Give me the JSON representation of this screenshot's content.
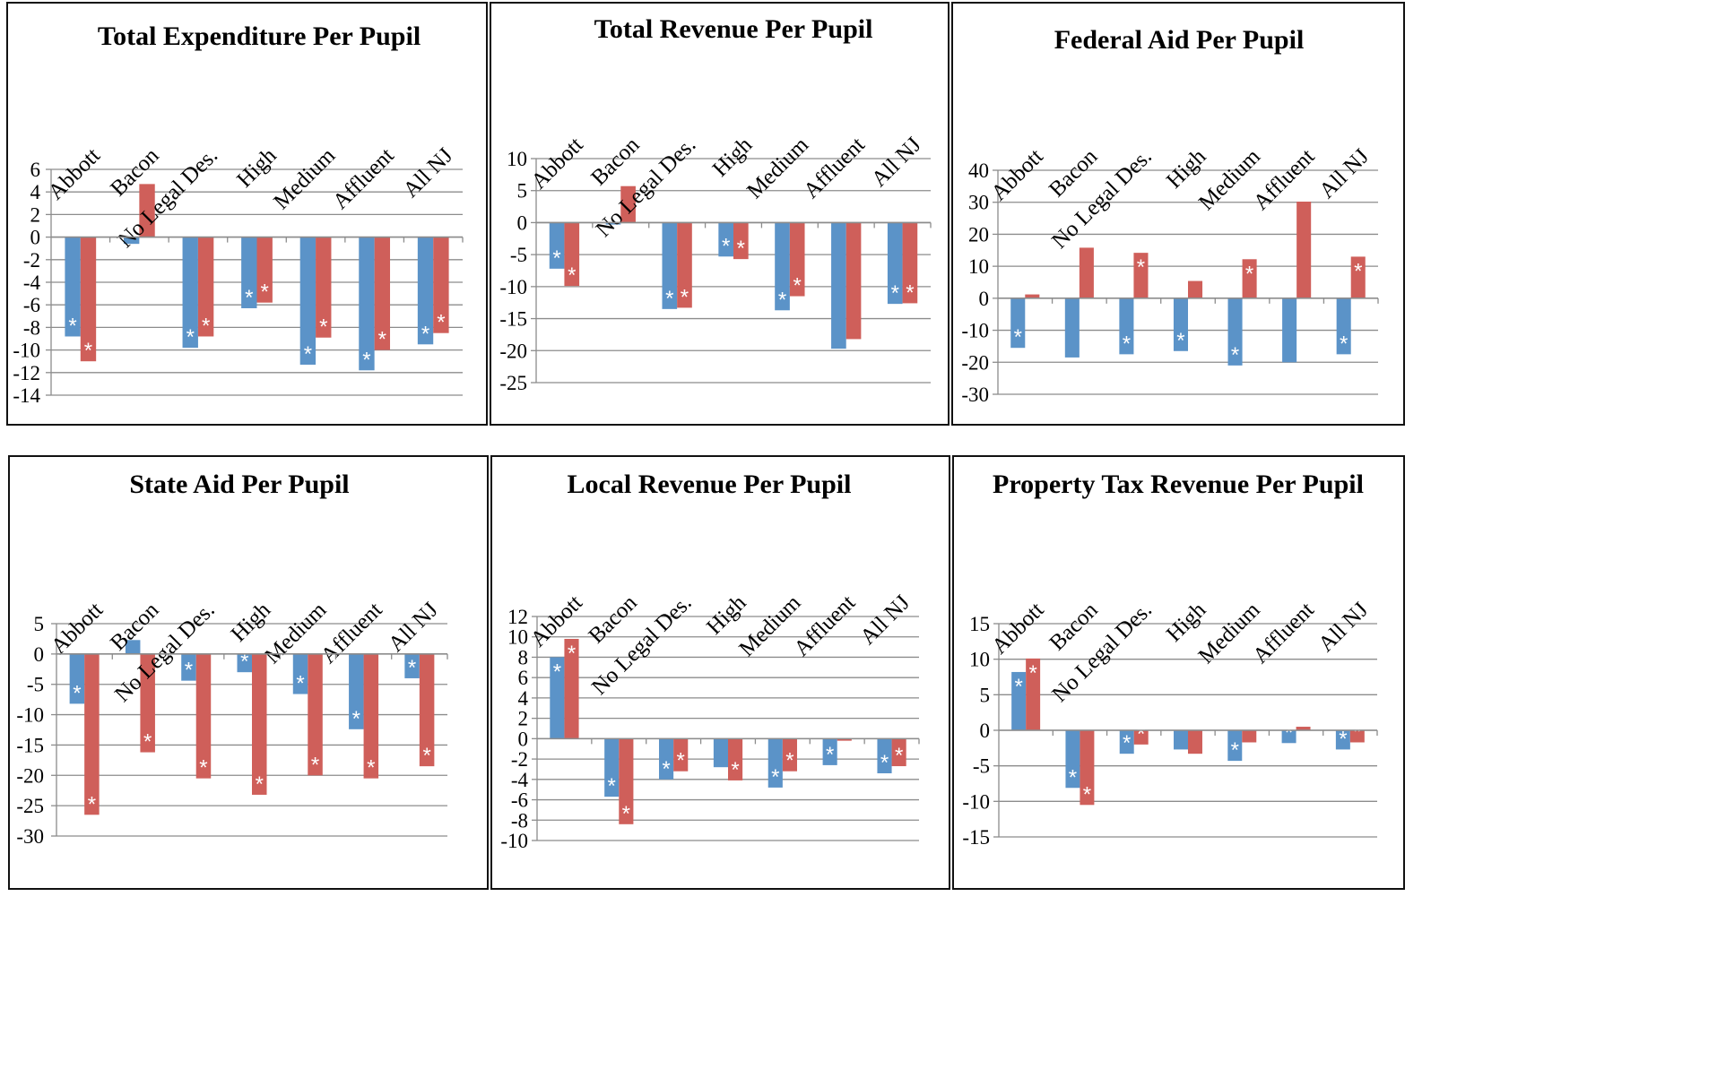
{
  "colors": {
    "series1": "#5b93c8",
    "series2": "#cf5f5a",
    "grid": "#8c8c8c",
    "axis": "#8c8c8c"
  },
  "chart_data": [
    {
      "type": "bar",
      "title": "Total Expenditure Per Pupil",
      "categories": [
        "Abbott",
        "Bacon",
        "No Legal Des.",
        "High",
        "Medium",
        "Affluent",
        "All NJ"
      ],
      "ylim": [
        -14,
        6
      ],
      "yticks": [
        6,
        4,
        2,
        0,
        -2,
        -4,
        -6,
        -8,
        -10,
        -12,
        -14
      ],
      "grid": true,
      "series": [
        {
          "values": [
            -8.8,
            -0.6,
            -9.8,
            -6.3,
            -11.3,
            -11.8,
            -9.5
          ],
          "significant": [
            true,
            false,
            true,
            true,
            true,
            true,
            true
          ]
        },
        {
          "values": [
            -11.0,
            4.7,
            -8.8,
            -5.8,
            -8.9,
            -10.0,
            -8.5
          ],
          "significant": [
            true,
            false,
            true,
            true,
            true,
            true,
            true
          ]
        }
      ]
    },
    {
      "type": "bar",
      "title": "Total Revenue Per Pupil",
      "categories": [
        "Abbott",
        "Bacon",
        "No Legal Des.",
        "High",
        "Medium",
        "Affluent",
        "All NJ"
      ],
      "ylim": [
        -25,
        10
      ],
      "yticks": [
        10,
        5,
        0,
        -5,
        -10,
        -15,
        -20,
        -25
      ],
      "grid": true,
      "series": [
        {
          "values": [
            -7.2,
            -0.3,
            -13.5,
            -5.3,
            -13.7,
            -19.7,
            -12.7
          ],
          "significant": [
            true,
            false,
            true,
            true,
            true,
            false,
            true
          ]
        },
        {
          "values": [
            -9.9,
            5.7,
            -13.3,
            -5.7,
            -11.5,
            -18.2,
            -12.6
          ],
          "significant": [
            true,
            false,
            true,
            true,
            true,
            false,
            true
          ]
        }
      ]
    },
    {
      "type": "bar",
      "title": "Federal Aid Per Pupil",
      "categories": [
        "Abbott",
        "Bacon",
        "No Legal Des.",
        "High",
        "Medium",
        "Affluent",
        "All NJ"
      ],
      "ylim": [
        -30,
        40
      ],
      "yticks": [
        40,
        30,
        20,
        10,
        0,
        -10,
        -20,
        -30
      ],
      "grid": true,
      "series": [
        {
          "values": [
            -15.5,
            -18.5,
            -17.5,
            -16.5,
            -21.0,
            -20.0,
            -17.5
          ],
          "significant": [
            true,
            false,
            true,
            true,
            true,
            false,
            true
          ]
        },
        {
          "values": [
            1.2,
            15.8,
            14.2,
            5.4,
            12.2,
            30.2,
            13.0
          ],
          "significant": [
            false,
            false,
            true,
            false,
            true,
            false,
            true
          ]
        }
      ]
    },
    {
      "type": "bar",
      "title": "State Aid Per Pupil",
      "categories": [
        "Abbott",
        "Bacon",
        "No Legal Des.",
        "High",
        "Medium",
        "Affluent",
        "All NJ"
      ],
      "ylim": [
        -30,
        5
      ],
      "yticks": [
        5,
        0,
        -5,
        -10,
        -15,
        -20,
        -25,
        -30
      ],
      "grid": true,
      "series": [
        {
          "values": [
            -8.2,
            2.3,
            -4.4,
            -3.0,
            -6.6,
            -12.4,
            -4.0
          ],
          "significant": [
            true,
            false,
            true,
            true,
            true,
            true,
            true
          ]
        },
        {
          "values": [
            -26.5,
            -16.2,
            -20.5,
            -23.2,
            -20.0,
            -20.5,
            -18.5
          ],
          "significant": [
            true,
            true,
            true,
            true,
            true,
            true,
            true
          ]
        }
      ]
    },
    {
      "type": "bar",
      "title": "Local Revenue Per Pupil",
      "categories": [
        "Abbott",
        "Bacon",
        "No Legal Des.",
        "High",
        "Medium",
        "Affluent",
        "All NJ"
      ],
      "ylim": [
        -10,
        12
      ],
      "yticks": [
        12,
        10,
        8,
        6,
        4,
        2,
        0,
        -2,
        -4,
        -6,
        -8,
        -10
      ],
      "grid": true,
      "series": [
        {
          "values": [
            8.0,
            -5.7,
            -4.0,
            -2.8,
            -4.8,
            -2.6,
            -3.4
          ],
          "significant": [
            true,
            true,
            true,
            false,
            true,
            true,
            true
          ]
        },
        {
          "values": [
            9.8,
            -8.4,
            -3.2,
            -4.1,
            -3.2,
            -0.2,
            -2.7
          ],
          "significant": [
            true,
            true,
            true,
            true,
            true,
            false,
            true
          ]
        }
      ]
    },
    {
      "type": "bar",
      "title": "Property Tax Revenue Per Pupil",
      "categories": [
        "Abbott",
        "Bacon",
        "No Legal Des.",
        "High",
        "Medium",
        "Affluent",
        "All NJ"
      ],
      "ylim": [
        -15,
        15
      ],
      "yticks": [
        15,
        10,
        5,
        0,
        -5,
        -10,
        -15
      ],
      "grid": true,
      "series": [
        {
          "values": [
            8.2,
            -8.1,
            -3.3,
            -2.7,
            -4.3,
            -1.8,
            -2.7
          ],
          "significant": [
            true,
            true,
            true,
            false,
            true,
            true,
            true
          ]
        },
        {
          "values": [
            10.1,
            -10.5,
            -2.0,
            -3.3,
            -1.7,
            0.5,
            -1.7
          ],
          "significant": [
            true,
            true,
            true,
            false,
            false,
            false,
            true
          ]
        }
      ]
    }
  ]
}
